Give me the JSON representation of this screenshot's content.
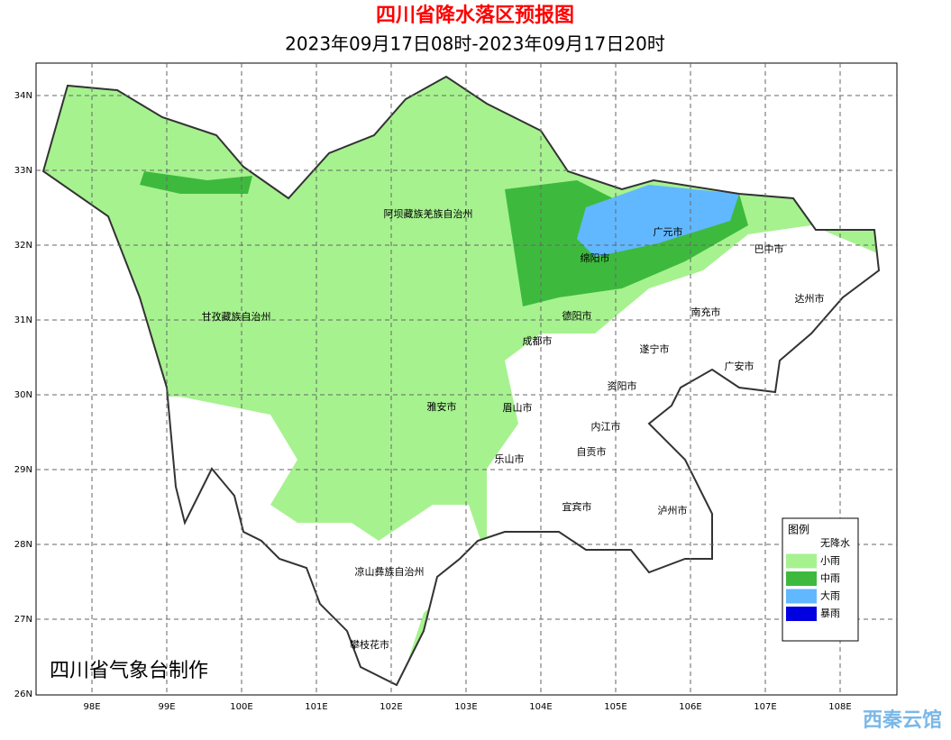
{
  "header": {
    "title": "四川省降水落区预报图",
    "subtitle": "2023年09月17日08时-2023年09月17日20时"
  },
  "map": {
    "lat_labels": [
      "34N",
      "33N",
      "32N",
      "31N",
      "30N",
      "29N",
      "28N",
      "27N",
      "26N"
    ],
    "lon_labels": [
      "98E",
      "99E",
      "100E",
      "101E",
      "102E",
      "103E",
      "104E",
      "105E",
      "106E",
      "107E",
      "108E"
    ],
    "regions": [
      "阿坝藏族羌族自治州",
      "甘孜藏族自治州",
      "广元市",
      "巴中市",
      "绵阳市",
      "达州市",
      "南充市",
      "德阳市",
      "成都市",
      "遂宁市",
      "广安市",
      "资阳市",
      "雅安市",
      "眉山市",
      "内江市",
      "自贡市",
      "乐山市",
      "宜宾市",
      "泸州市",
      "凉山彝族自治州",
      "攀枝花市"
    ]
  },
  "legend": {
    "title": "图例",
    "items": [
      {
        "label": "无降水",
        "color": "#ffffff"
      },
      {
        "label": "小雨",
        "color": "#a6f28f"
      },
      {
        "label": "中雨",
        "color": "#3dba3d"
      },
      {
        "label": "大雨",
        "color": "#61b8ff"
      },
      {
        "label": "暴雨",
        "color": "#0000e1"
      }
    ]
  },
  "credit": "四川省气象台制作",
  "watermark": "西秦云馆"
}
